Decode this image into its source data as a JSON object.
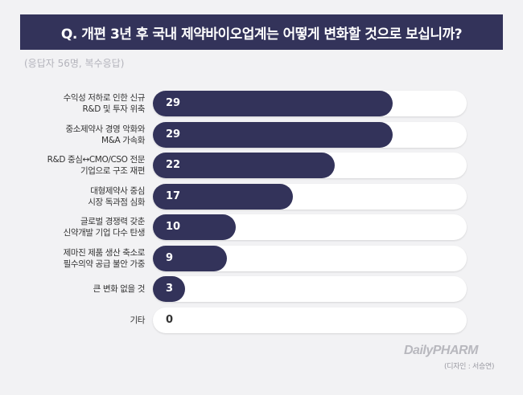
{
  "header": {
    "title": "Q. 개편 3년 후 국내 제약바이오업계는 어떻게 변화할 것으로 보십니까?",
    "subtitle": "(응답자 56명, 복수응답)"
  },
  "colors": {
    "bar": "#33335a",
    "track": "#ffffff",
    "background": "#f2f2f4"
  },
  "chart_data": {
    "type": "bar",
    "orientation": "horizontal",
    "categories": [
      [
        "수익성 저하로 인한 신규",
        "R&D 및 투자 위축"
      ],
      [
        "중소제약사 경영 악화와",
        "M&A 가속화"
      ],
      [
        "R&D 중심↔CMO/CSO 전문",
        "기업으로 구조 재편"
      ],
      [
        "대형제약사 중심",
        "시장 독과점 심화"
      ],
      [
        "글로벌 경쟁력 갖춘",
        "신약개발 기업 다수 탄생"
      ],
      [
        "제마진 제품 생산 축소로",
        "필수의약 공급 불안 가중"
      ],
      [
        "큰 변화 없을 것"
      ],
      [
        "기타"
      ]
    ],
    "values": [
      29,
      29,
      22,
      17,
      10,
      9,
      3,
      0
    ],
    "xlim": [
      0,
      38
    ],
    "grid": false,
    "legend": "none"
  },
  "footer": {
    "logo_text": "DailyPHARM",
    "credit": "(디자인 : 서승연)"
  }
}
